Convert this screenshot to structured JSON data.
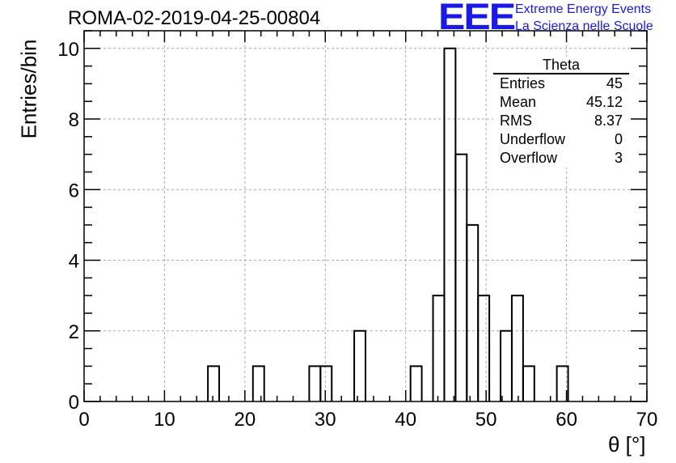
{
  "header": {
    "title": "ROMA-02-2019-04-25-00804",
    "logo": "EEE",
    "logo_line1": "Extreme Energy Events",
    "logo_line2": "La Scienza nelle Scuole"
  },
  "stats": {
    "title": "Theta",
    "rows": [
      {
        "label": "Entries",
        "value": "45"
      },
      {
        "label": "Mean",
        "value": "45.12"
      },
      {
        "label": "RMS",
        "value": "8.37"
      },
      {
        "label": "Underflow",
        "value": "0"
      },
      {
        "label": "Overflow",
        "value": "3"
      }
    ]
  },
  "chart_data": {
    "type": "bar",
    "xlabel": "θ [°]",
    "ylabel": "Entries/bin",
    "xlim": [
      0,
      70
    ],
    "ylim": [
      0,
      10.5
    ],
    "xticks": [
      0,
      10,
      20,
      30,
      40,
      50,
      60,
      70
    ],
    "yticks": [
      0,
      2,
      4,
      6,
      8,
      10
    ],
    "grid": true,
    "bin_width": 1.4,
    "bins": [
      {
        "x": [
          15.4,
          16.8
        ],
        "value": 1
      },
      {
        "x": [
          21.0,
          22.4
        ],
        "value": 1
      },
      {
        "x": [
          28.0,
          29.4
        ],
        "value": 1
      },
      {
        "x": [
          29.4,
          30.8
        ],
        "value": 1
      },
      {
        "x": [
          33.6,
          35.0
        ],
        "value": 2
      },
      {
        "x": [
          40.6,
          42.0
        ],
        "value": 1
      },
      {
        "x": [
          43.4,
          44.8
        ],
        "value": 3
      },
      {
        "x": [
          44.8,
          46.2
        ],
        "value": 10
      },
      {
        "x": [
          46.2,
          47.6
        ],
        "value": 7
      },
      {
        "x": [
          47.6,
          49.0
        ],
        "value": 5
      },
      {
        "x": [
          49.0,
          50.4
        ],
        "value": 3
      },
      {
        "x": [
          51.8,
          53.2
        ],
        "value": 2
      },
      {
        "x": [
          53.2,
          54.6
        ],
        "value": 3
      },
      {
        "x": [
          54.6,
          56.0
        ],
        "value": 1
      },
      {
        "x": [
          58.8,
          60.2
        ],
        "value": 1
      }
    ]
  }
}
